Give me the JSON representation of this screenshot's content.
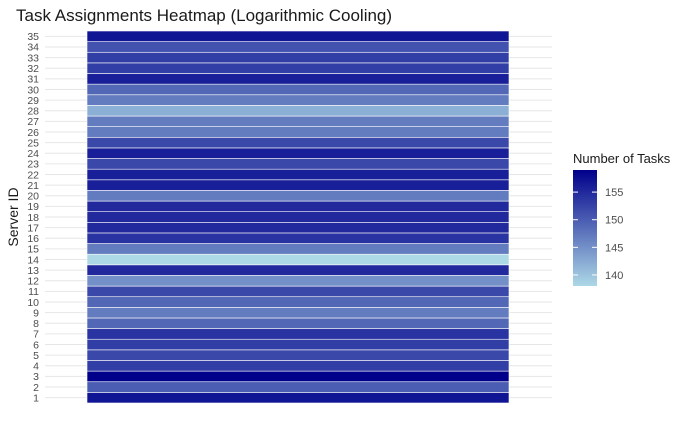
{
  "chart_data": {
    "type": "heatmap",
    "title": "Task Assignments Heatmap (Logarithmic Cooling)",
    "ylabel": "Server ID",
    "xlabel": "",
    "y_categories": [
      "1",
      "2",
      "3",
      "4",
      "5",
      "6",
      "7",
      "8",
      "9",
      "10",
      "11",
      "12",
      "13",
      "14",
      "15",
      "16",
      "17",
      "18",
      "19",
      "20",
      "21",
      "22",
      "23",
      "24",
      "25",
      "26",
      "27",
      "28",
      "29",
      "30",
      "31",
      "32",
      "33",
      "34",
      "35"
    ],
    "values": [
      157,
      150,
      159,
      153,
      152,
      153,
      154,
      149,
      147,
      149,
      152,
      145,
      155,
      138,
      147,
      154,
      155,
      155,
      155,
      147,
      156,
      156,
      152,
      156,
      152,
      147,
      147,
      142,
      147,
      149,
      156,
      153,
      153,
      151,
      157
    ],
    "legend": {
      "title": "Number of Tasks",
      "ticks": [
        140,
        145,
        150,
        155
      ],
      "range": [
        138,
        159
      ],
      "low_color": "#ADD8E6",
      "high_color": "#00008B",
      "position": "right"
    },
    "grid": true
  }
}
